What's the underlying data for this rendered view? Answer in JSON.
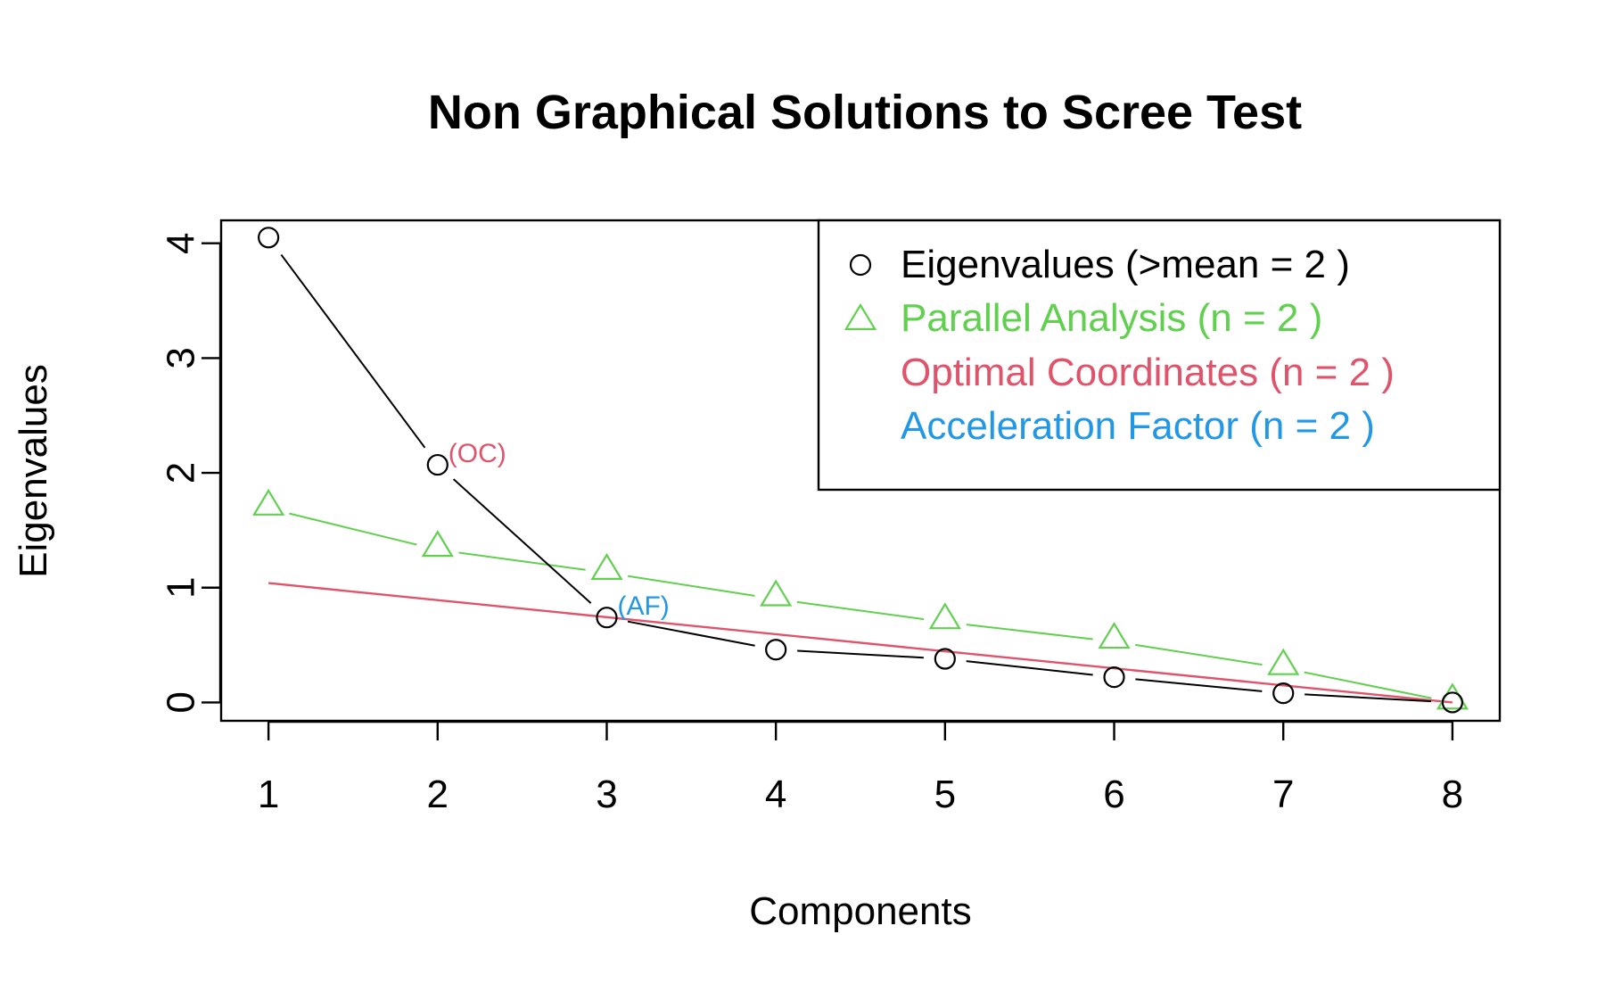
{
  "chart_data": {
    "type": "line",
    "title": "Non Graphical Solutions to Scree Test",
    "xlabel": "Components",
    "ylabel": "Eigenvalues",
    "x": [
      1,
      2,
      3,
      4,
      5,
      6,
      7,
      8
    ],
    "xlim": [
      0.72,
      8.28
    ],
    "ylim": [
      -0.16,
      4.2
    ],
    "xticks": [
      "1",
      "2",
      "3",
      "4",
      "5",
      "6",
      "7",
      "8"
    ],
    "yticks": [
      "0",
      "1",
      "2",
      "3",
      "4"
    ],
    "grid": false,
    "legend_position": "top-right",
    "series": [
      {
        "name": "Eigenvalues (>mean  =  2 )",
        "marker": "circle",
        "color": "#000000",
        "values": [
          4.05,
          2.07,
          0.74,
          0.46,
          0.38,
          0.22,
          0.08,
          0.0
        ]
      },
      {
        "name": "Parallel Analysis (n =  2 )",
        "marker": "triangle",
        "color": "#61D04F",
        "values": [
          1.69,
          1.33,
          1.13,
          0.9,
          0.7,
          0.53,
          0.3,
          0.0
        ]
      },
      {
        "name": "Optimal Coordinates (n =  2 )",
        "marker": "none",
        "color": "#DF536B",
        "line_points_x": [
          1,
          8
        ],
        "line_points_y": [
          1.04,
          0.0
        ]
      },
      {
        "name": "Acceleration Factor (n =  2 )",
        "marker": "none",
        "color": "#2297E6"
      }
    ],
    "annotations": [
      {
        "text": "(OC)",
        "x": 2,
        "y": 2.07,
        "color": "#DF536B"
      },
      {
        "text": "(AF)",
        "x": 3,
        "y": 0.74,
        "color": "#2297E6"
      }
    ]
  }
}
